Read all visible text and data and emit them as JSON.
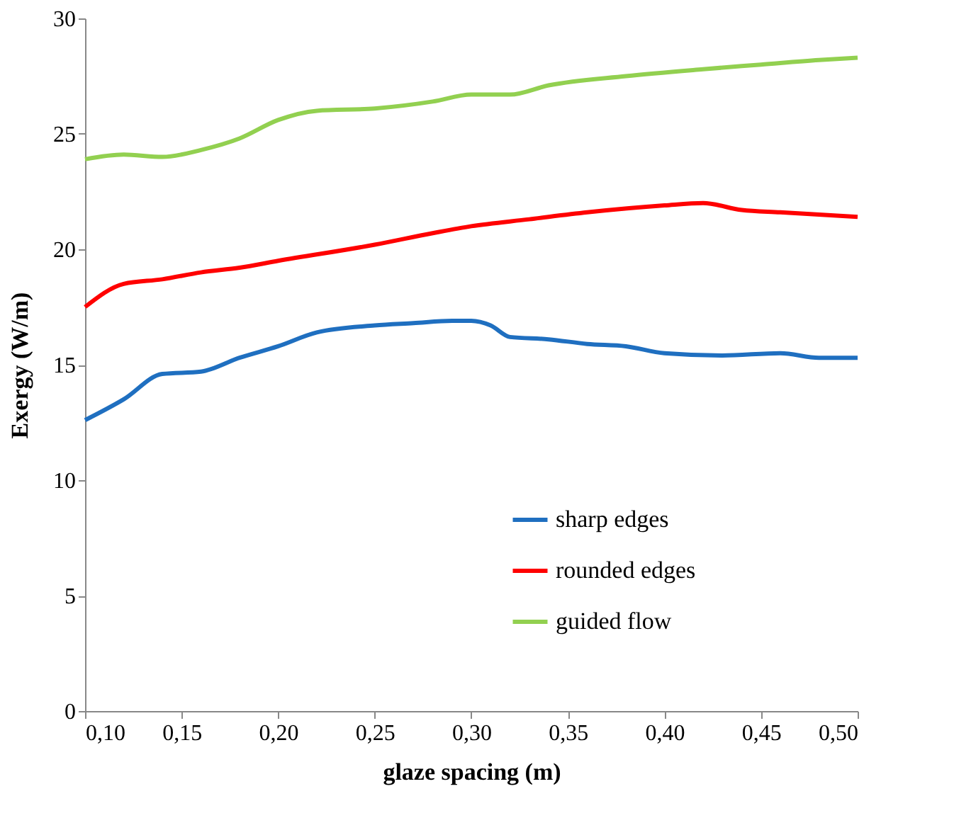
{
  "chart_data": {
    "type": "line",
    "xlabel": "glaze spacing (m)",
    "ylabel": "Exergy (W/m)",
    "xlim": [
      0.1,
      0.5
    ],
    "xticks": [
      {
        "value": 0.1,
        "label": "0,10"
      },
      {
        "value": 0.15,
        "label": "0,15"
      },
      {
        "value": 0.2,
        "label": "0,20"
      },
      {
        "value": 0.25,
        "label": "0,25"
      },
      {
        "value": 0.3,
        "label": "0,30"
      },
      {
        "value": 0.35,
        "label": "0,35"
      },
      {
        "value": 0.4,
        "label": "0,40"
      },
      {
        "value": 0.45,
        "label": "0,45"
      },
      {
        "value": 0.5,
        "label": "0,50"
      }
    ],
    "ylim": [
      0,
      30
    ],
    "yticks": [
      0,
      5,
      10,
      15,
      20,
      25,
      30
    ],
    "grid": false,
    "legend": "bottom right",
    "line_style": "solid",
    "marker": "none",
    "series": [
      {
        "name": "sharp edges",
        "color": "#1f6fc0",
        "x": [
          0.1,
          0.12,
          0.14,
          0.16,
          0.18,
          0.2,
          0.22,
          0.25,
          0.27,
          0.29,
          0.3,
          0.31,
          0.32,
          0.34,
          0.36,
          0.38,
          0.4,
          0.43,
          0.46,
          0.48,
          0.5
        ],
        "values": [
          12.6,
          13.5,
          14.6,
          14.7,
          15.3,
          15.8,
          16.4,
          16.7,
          16.8,
          16.9,
          16.9,
          16.7,
          16.2,
          16.1,
          15.9,
          15.8,
          15.5,
          15.4,
          15.5,
          15.3,
          15.3
        ]
      },
      {
        "name": "rounded edges",
        "color": "#ff0000",
        "x": [
          0.1,
          0.12,
          0.14,
          0.16,
          0.18,
          0.2,
          0.25,
          0.28,
          0.3,
          0.33,
          0.36,
          0.4,
          0.42,
          0.44,
          0.46,
          0.5
        ],
        "values": [
          17.5,
          18.5,
          18.7,
          19.0,
          19.2,
          19.5,
          20.2,
          20.7,
          21.0,
          21.3,
          21.6,
          21.9,
          22.0,
          21.7,
          21.6,
          21.4
        ]
      },
      {
        "name": "guided flow",
        "color": "#92d050",
        "x": [
          0.1,
          0.12,
          0.14,
          0.16,
          0.18,
          0.2,
          0.22,
          0.25,
          0.28,
          0.3,
          0.32,
          0.34,
          0.38,
          0.42,
          0.45,
          0.48,
          0.5
        ],
        "values": [
          23.9,
          24.1,
          24.0,
          24.3,
          24.8,
          25.6,
          26.0,
          26.1,
          26.4,
          26.7,
          26.7,
          27.1,
          27.5,
          27.8,
          28.0,
          28.2,
          28.3
        ]
      }
    ]
  }
}
